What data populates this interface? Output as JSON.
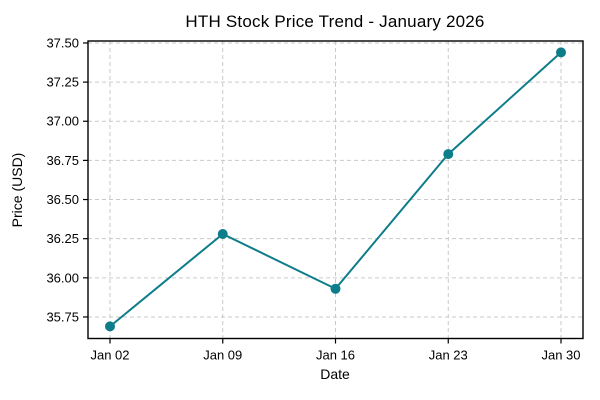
{
  "figure": {
    "background": "#ffffff"
  },
  "chart_data": {
    "type": "line",
    "title": "HTH Stock Price Trend - January 2026",
    "xlabel": "Date",
    "ylabel": "Price (USD)",
    "categories": [
      "Jan 02",
      "Jan 09",
      "Jan 16",
      "Jan 23",
      "Jan 30"
    ],
    "values": [
      35.69,
      36.28,
      35.93,
      36.79,
      37.44
    ],
    "series_name": "HTH",
    "yticks": [
      35.75,
      36.0,
      36.25,
      36.5,
      36.75,
      37.0,
      37.25,
      37.5
    ],
    "ytick_labels": [
      "35.75",
      "36.00",
      "36.25",
      "36.50",
      "36.75",
      "37.00",
      "37.25",
      "37.50"
    ],
    "ylim": [
      35.6125,
      37.5125
    ],
    "grid": true,
    "grid_style": "dashed",
    "legend_position": "none",
    "line_color": "#0e7d8a",
    "marker": "circle",
    "marker_color": "#0e7d8a",
    "grid_color": "#c9c9c9",
    "spine_color": "#000000",
    "text_color": "#000000"
  }
}
